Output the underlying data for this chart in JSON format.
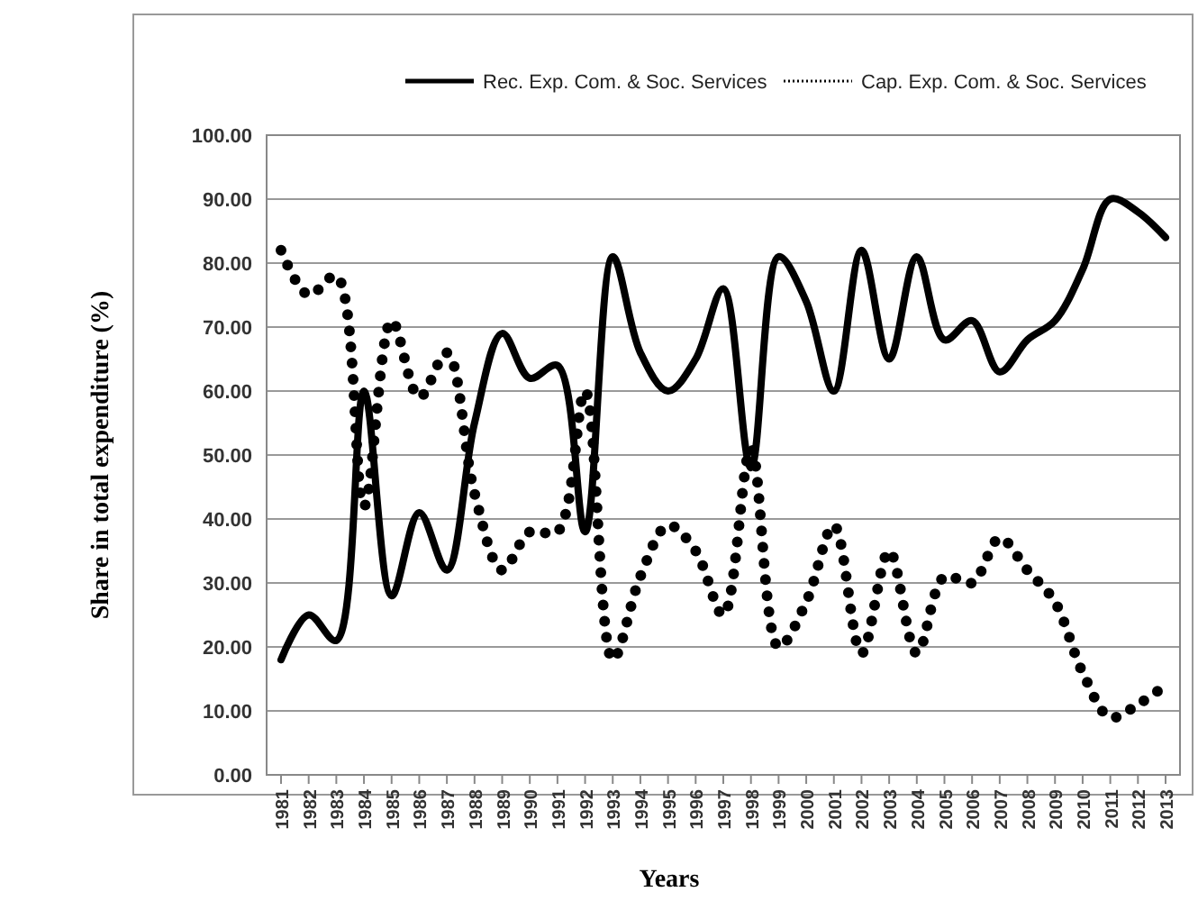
{
  "chart_data": {
    "type": "line",
    "xlabel": "Years",
    "ylabel": "Share in total expenditure (%)",
    "categories": [
      "1981",
      "1982",
      "1983",
      "1984",
      "1985",
      "1986",
      "1987",
      "1988",
      "1989",
      "1990",
      "1991",
      "1992",
      "1993",
      "1994",
      "1995",
      "1996",
      "1997",
      "1998",
      "1999",
      "2000",
      "2001",
      "2002",
      "2003",
      "2004",
      "2005",
      "2006",
      "2007",
      "2008",
      "2009",
      "2010",
      "2011",
      "2012",
      "2013"
    ],
    "series": [
      {
        "name": "Rec. Exp. Com. & Soc. Services",
        "color": "#000000",
        "line_style": "solid",
        "values": [
          18,
          25,
          21,
          60,
          28,
          41,
          32,
          55,
          69,
          62,
          64,
          38,
          81,
          66,
          60,
          65,
          76,
          48,
          81,
          74,
          60,
          82,
          65,
          81,
          68,
          71,
          63,
          68,
          71,
          79,
          90,
          88,
          84
        ]
      },
      {
        "name": "Cap. Exp. Com. & Soc. Services",
        "color": "#000000",
        "line_style": "dotted",
        "values": [
          82,
          75,
          78,
          42,
          71,
          59,
          66,
          44,
          32,
          38,
          38,
          60,
          18,
          31,
          39,
          35,
          25,
          51,
          20,
          27,
          39,
          19,
          35,
          19,
          31,
          30,
          37,
          32,
          27,
          16,
          9,
          11,
          14
        ]
      }
    ],
    "ylim": [
      0,
      100
    ],
    "yticks": [
      {
        "value": 0,
        "label": "0.00"
      },
      {
        "value": 10,
        "label": "10.00"
      },
      {
        "value": 20,
        "label": "20.00"
      },
      {
        "value": 30,
        "label": "30.00"
      },
      {
        "value": 40,
        "label": "40.00"
      },
      {
        "value": 50,
        "label": "50.00"
      },
      {
        "value": 60,
        "label": "60.00"
      },
      {
        "value": 70,
        "label": "70.00"
      },
      {
        "value": 80,
        "label": "80.00"
      },
      {
        "value": 90,
        "label": "90.00"
      },
      {
        "value": 100,
        "label": "100.00"
      }
    ],
    "grid": "y",
    "legend": "top",
    "marker": "none"
  }
}
